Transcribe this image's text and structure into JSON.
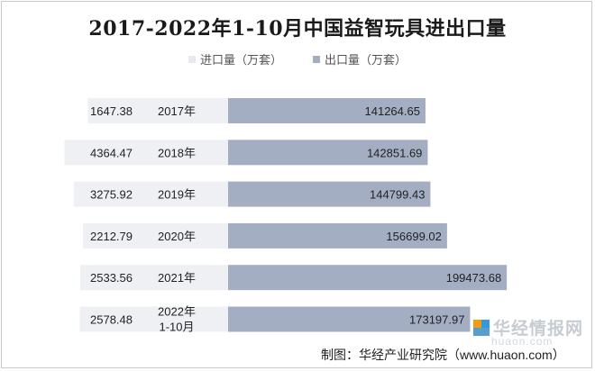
{
  "chart_data": {
    "type": "bar",
    "title": "2017-2022年1-10月中国益智玩具进出口量",
    "categories": [
      "2017年",
      "2018年",
      "2019年",
      "2020年",
      "2021年",
      "2022年\n1-10月"
    ],
    "series": [
      {
        "name": "进口量（万套）",
        "values": [
          1647.38,
          4364.47,
          3275.92,
          2212.79,
          2533.56,
          2578.48
        ]
      },
      {
        "name": "出口量（万套）",
        "values": [
          141264.65,
          142851.69,
          144799.43,
          156699.02,
          199473.68,
          173197.97
        ]
      }
    ],
    "value_labels": {
      "import": [
        "1647.38",
        "4364.47",
        "3275.92",
        "2212.79",
        "2533.56",
        "2578.48"
      ],
      "export": [
        "141264.65",
        "142851.69",
        "144799.43",
        "156699.02",
        "199473.68",
        "173197.97"
      ]
    },
    "colors": {
      "import": "#eef0f4",
      "export": "#a4aec3"
    },
    "orientation": "horizontal-butterfly",
    "legend_position": "top-center"
  },
  "legend": {
    "import_label": "进口量（万套）",
    "export_label": "出口量（万套）"
  },
  "source": "制图：华经产业研究院（www.huaon.com）",
  "watermark": {
    "brand": "华经情报网",
    "url": "huaon.com"
  }
}
